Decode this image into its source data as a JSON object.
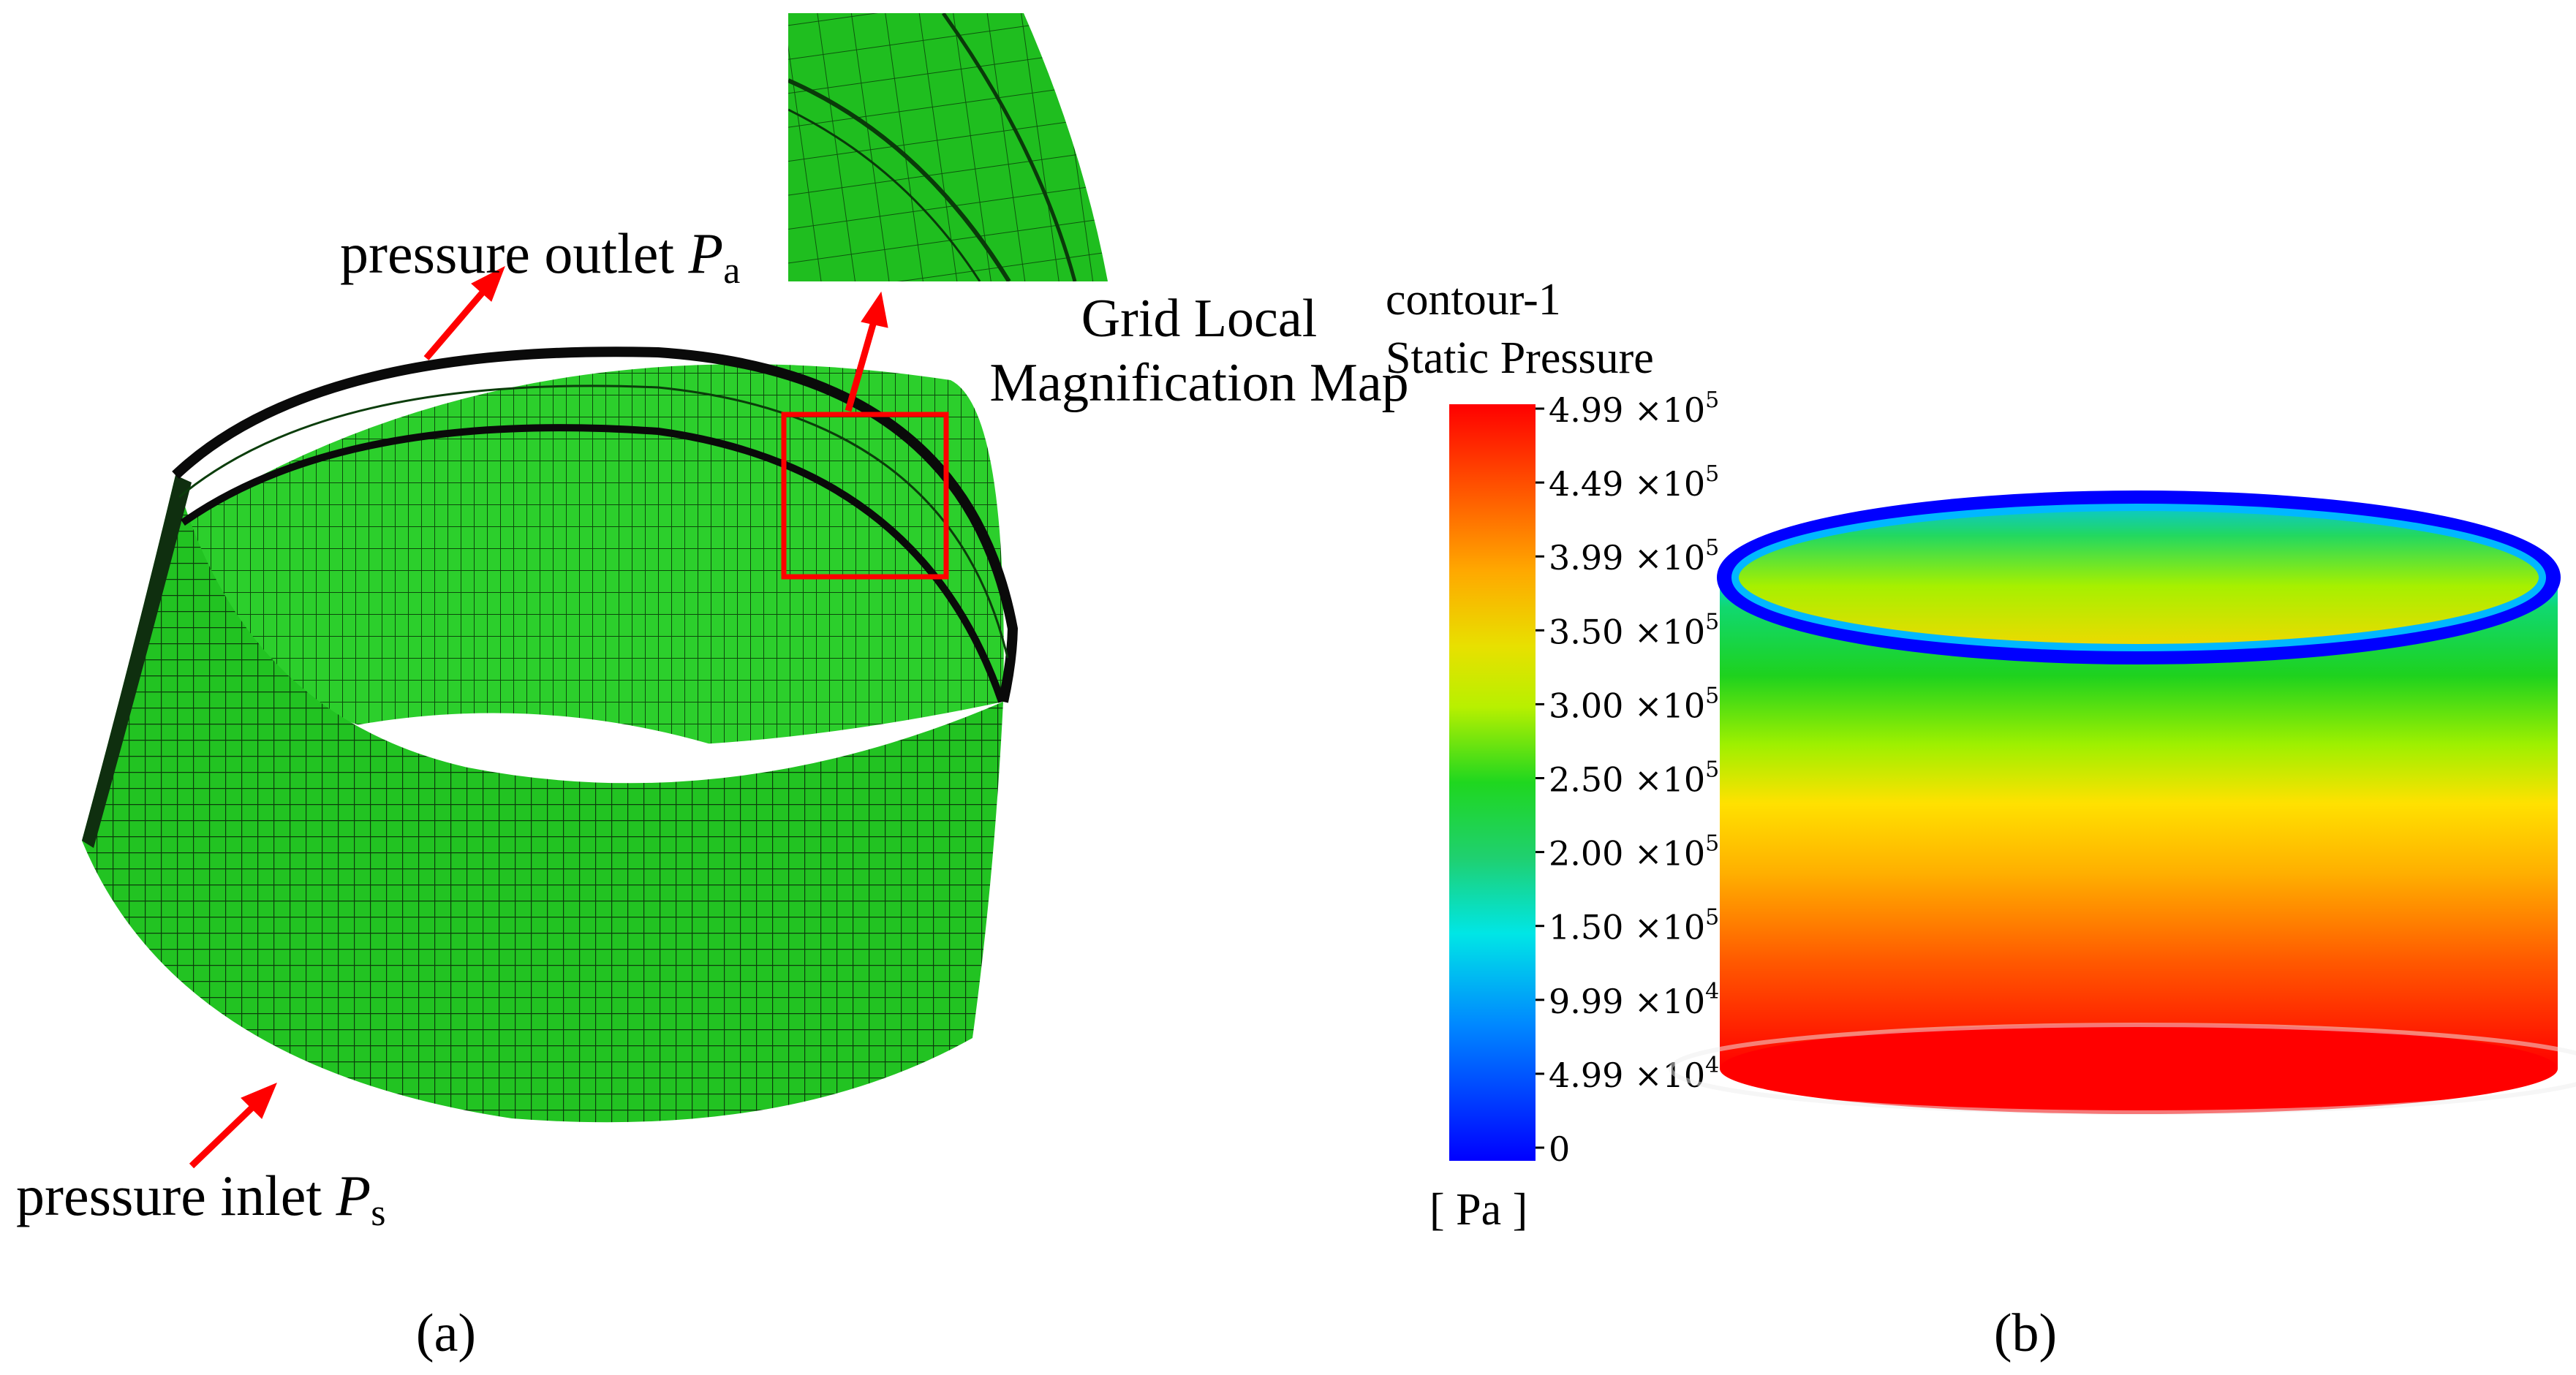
{
  "panel_a": {
    "caption": "(a)",
    "labels": {
      "outlet_text": "pressure outlet ",
      "outlet_symbol": "P",
      "outlet_sub": "a",
      "inlet_text": "pressure inlet ",
      "inlet_symbol": "P",
      "inlet_sub": "s",
      "magnification_line1": "Grid Local",
      "magnification_line2": "Magnification Map"
    },
    "colors": {
      "mesh_fill": "#22c322",
      "mesh_line": "#0b3d0b",
      "annotation": "#ff0000"
    }
  },
  "panel_b": {
    "caption": "(b)",
    "legend_title_line1": "contour-1",
    "legend_title_line2": "Static Pressure",
    "unit": "[ Pa ]",
    "ticks": [
      {
        "mantissa": "4.99",
        "exp": "5"
      },
      {
        "mantissa": "4.49",
        "exp": "5"
      },
      {
        "mantissa": "3.99",
        "exp": "5"
      },
      {
        "mantissa": "3.50",
        "exp": "5"
      },
      {
        "mantissa": "3.00",
        "exp": "5"
      },
      {
        "mantissa": "2.50",
        "exp": "5"
      },
      {
        "mantissa": "2.00",
        "exp": "5"
      },
      {
        "mantissa": "1.50",
        "exp": "5"
      },
      {
        "mantissa": "9.99",
        "exp": "4"
      },
      {
        "mantissa": "4.99",
        "exp": "4"
      },
      {
        "mantissa": "0",
        "exp": ""
      }
    ],
    "times_symbol": "×10",
    "colormap": [
      "#ff0000",
      "#ff6a00",
      "#ffd400",
      "#c8f500",
      "#22dd22",
      "#20d060",
      "#00e8e8",
      "#0080ff",
      "#0000ff"
    ]
  }
}
